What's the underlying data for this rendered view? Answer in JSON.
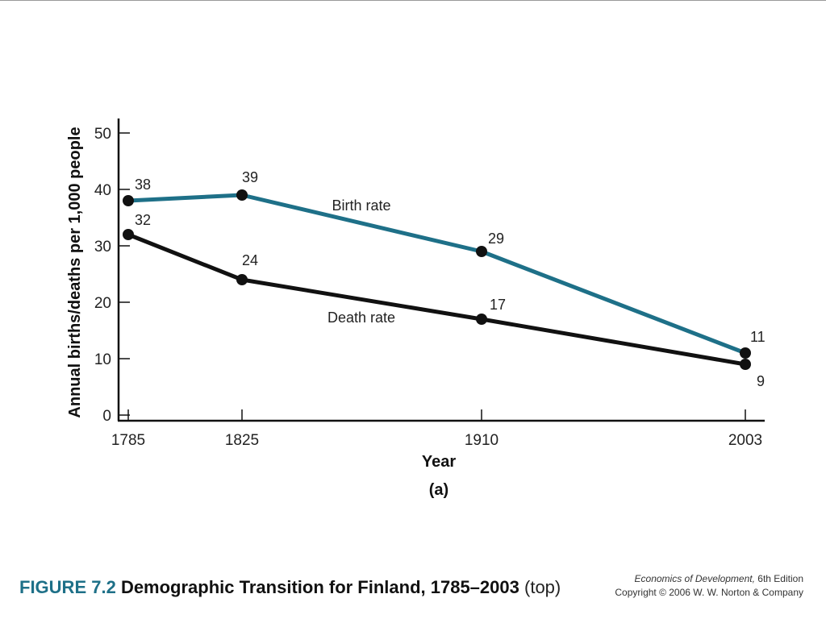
{
  "chart_data": {
    "type": "line",
    "x": [
      1785,
      1825,
      1910,
      2003
    ],
    "xlabel": "Year",
    "ylabel": "Annual births/deaths per 1,000 people",
    "ylim": [
      0,
      50
    ],
    "yticks": [
      0,
      10,
      20,
      30,
      40,
      50
    ],
    "xticks": [
      "1785",
      "1825",
      "1910",
      "2003"
    ],
    "panel_label": "(a)",
    "grid": false,
    "series": [
      {
        "name": "Birth rate",
        "values": [
          38,
          39,
          29,
          11
        ],
        "labels": [
          "38",
          "39",
          "29",
          "11"
        ],
        "color": "#1e7088"
      },
      {
        "name": "Death rate",
        "values": [
          32,
          24,
          17,
          9
        ],
        "labels": [
          "32",
          "24",
          "17",
          "9"
        ],
        "color": "#111111"
      }
    ]
  },
  "caption": {
    "figure_number": "FIGURE 7.2",
    "title": "Demographic Transition for Finland, 1785–2003",
    "qualifier": "(top)"
  },
  "credit": {
    "book": "Economics of Development,",
    "edition": "6th Edition",
    "copyright": "Copyright © 2006 W. W. Norton & Company"
  }
}
